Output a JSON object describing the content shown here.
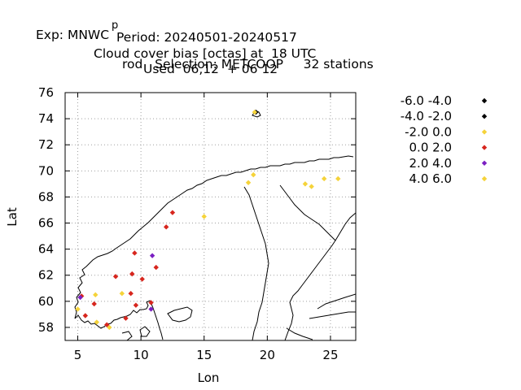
{
  "title": {
    "line1_a": "Exp: MNWC",
    "line1_sub": "p",
    "line1_b": "rod   Selection: METCOOP     32 stations",
    "line2": "Period: 20240501-20240517",
    "line3": "Cloud cover bias [octas] at  18 UTC",
    "line4": "Used  06,12  + 06 12"
  },
  "chart_data": {
    "type": "scatter",
    "xlabel": "Lon",
    "ylabel": "Lat",
    "xlim": [
      4,
      27
    ],
    "ylim": [
      57,
      76
    ],
    "xticks": [
      5,
      10,
      15,
      20,
      25
    ],
    "yticks": [
      58,
      60,
      62,
      64,
      66,
      68,
      70,
      72,
      74,
      76
    ],
    "grid": true,
    "legend_position": "right",
    "series": [
      {
        "name": "-6.0 -4.0",
        "color": "#000000",
        "points": []
      },
      {
        "name": "-4.0 -2.0",
        "color": "#000000",
        "points": [
          [
            19.1,
            74.5
          ]
        ]
      },
      {
        "name": "-2.0 0.0",
        "color": "#f5d33a",
        "points": [
          [
            19.0,
            74.5
          ],
          [
            15.0,
            66.5
          ],
          [
            18.5,
            69.1
          ],
          [
            18.9,
            69.7
          ],
          [
            23.0,
            69.0
          ],
          [
            23.5,
            68.8
          ],
          [
            24.5,
            69.4
          ],
          [
            25.6,
            69.4
          ],
          [
            5.0,
            59.4
          ],
          [
            6.5,
            58.4
          ],
          [
            7.5,
            58.0
          ],
          [
            8.5,
            60.6
          ]
        ]
      },
      {
        "name": "0.0 2.0",
        "color": "#d7261e",
        "points": [
          [
            12.5,
            66.8
          ],
          [
            12.0,
            65.7
          ],
          [
            9.5,
            63.7
          ],
          [
            11.2,
            62.6
          ],
          [
            9.3,
            62.1
          ],
          [
            8.0,
            61.9
          ],
          [
            10.1,
            61.7
          ],
          [
            9.2,
            60.6
          ],
          [
            9.6,
            59.7
          ],
          [
            10.8,
            59.9
          ],
          [
            6.3,
            59.8
          ],
          [
            5.6,
            58.9
          ],
          [
            8.8,
            58.7
          ],
          [
            7.3,
            58.2
          ],
          [
            5.3,
            60.4
          ]
        ]
      },
      {
        "name": "2.0 4.0",
        "color": "#7b1fc2",
        "points": [
          [
            10.9,
            63.5
          ],
          [
            5.2,
            60.3
          ],
          [
            10.8,
            59.4
          ]
        ]
      },
      {
        "name": "4.0 6.0",
        "color": "#f5d33a",
        "points": [
          [
            6.4,
            60.5
          ]
        ]
      }
    ]
  }
}
